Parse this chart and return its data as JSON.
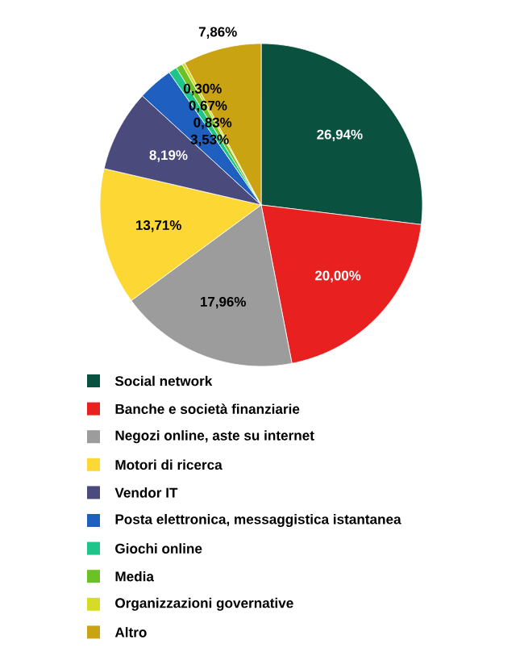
{
  "chart_data": {
    "type": "pie",
    "categories": [
      "Social network",
      "Banche e società finanziarie",
      "Negozi online, aste su internet",
      "Motori di ricerca",
      "Vendor IT",
      "Posta elettronica, messaggistica istantanea",
      "Giochi online",
      "Media",
      "Organizzazioni governative",
      "Altro"
    ],
    "values": [
      26.94,
      20.0,
      17.96,
      13.71,
      8.19,
      3.53,
      0.83,
      0.67,
      0.3,
      7.86
    ],
    "value_labels": [
      "26,94%",
      "20,00%",
      "17,96%",
      "13,71%",
      "8,19%",
      "3,53%",
      "0,83%",
      "0,67%",
      "0,30%",
      "7,86%"
    ],
    "colors": [
      "#0b5140",
      "#e8201f",
      "#9c9c9c",
      "#fdd835",
      "#4b4a7c",
      "#1f5fbf",
      "#1dc58b",
      "#6cc224",
      "#d4dc26",
      "#c9a311"
    ],
    "legend": "bottom"
  }
}
